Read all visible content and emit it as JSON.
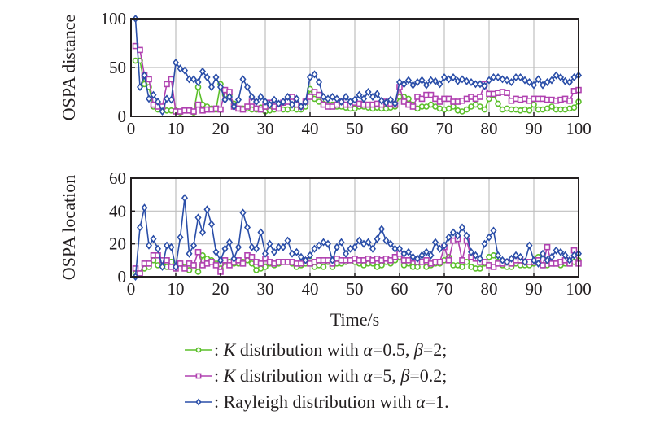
{
  "chart_data": [
    {
      "type": "line",
      "ylabel": "OSPA distance",
      "xlabel": "",
      "xlim": [
        0,
        100
      ],
      "ylim": [
        0,
        100
      ],
      "xticks": [
        "0",
        "10",
        "20",
        "30",
        "40",
        "50",
        "60",
        "70",
        "80",
        "90",
        "100"
      ],
      "yticks": [
        "0",
        "50",
        "100"
      ],
      "grid": true,
      "series": [
        {
          "name": "K-0.5-2",
          "color": "#5bbf2a",
          "marker": "circle",
          "x_start": 1,
          "values": [
            57,
            57,
            33,
            30,
            10,
            7,
            7,
            6,
            6,
            6,
            4,
            6,
            6,
            4,
            30,
            12,
            10,
            8,
            7,
            33,
            22,
            22,
            13,
            8,
            8,
            8,
            7,
            7,
            9,
            5,
            6,
            7,
            8,
            7,
            7,
            8,
            7,
            7,
            10,
            28,
            18,
            15,
            13,
            12,
            12,
            10,
            10,
            9,
            8,
            8,
            10,
            10,
            9,
            8,
            9,
            8,
            8,
            9,
            10,
            20,
            20,
            18,
            12,
            8,
            10,
            10,
            12,
            10,
            8,
            7,
            8,
            10,
            6,
            5,
            7,
            10,
            12,
            10,
            7,
            18,
            22,
            13,
            7,
            8,
            7,
            7,
            6,
            7,
            6,
            12,
            7,
            7,
            8,
            10,
            7,
            7,
            7,
            8,
            9,
            15
          ]
        },
        {
          "name": "K-5-0.2",
          "color": "#b041b0",
          "marker": "square",
          "x_start": 1,
          "values": [
            72,
            68,
            42,
            38,
            12,
            10,
            10,
            33,
            38,
            5,
            5,
            6,
            6,
            5,
            12,
            6,
            7,
            7,
            8,
            7,
            27,
            25,
            10,
            8,
            7,
            10,
            15,
            8,
            7,
            10,
            14,
            10,
            8,
            14,
            15,
            20,
            12,
            10,
            15,
            20,
            25,
            22,
            12,
            10,
            10,
            12,
            15,
            12,
            12,
            14,
            13,
            12,
            12,
            12,
            13,
            12,
            15,
            13,
            12,
            30,
            15,
            12,
            10,
            20,
            18,
            22,
            22,
            18,
            15,
            18,
            18,
            15,
            15,
            16,
            18,
            20,
            18,
            20,
            33,
            23,
            23,
            24,
            25,
            24,
            16,
            18,
            17,
            18,
            16,
            18,
            18,
            18,
            17,
            17,
            16,
            17,
            18,
            16,
            26,
            27
          ]
        },
        {
          "name": "Rayleigh-1",
          "color": "#2a4ea8",
          "marker": "diamond",
          "x_start": 1,
          "values": [
            100,
            30,
            42,
            18,
            22,
            15,
            5,
            18,
            17,
            55,
            49,
            47,
            38,
            38,
            35,
            46,
            40,
            30,
            40,
            30,
            17,
            20,
            10,
            17,
            38,
            30,
            20,
            15,
            20,
            15,
            12,
            17,
            13,
            15,
            20,
            12,
            18,
            10,
            15,
            40,
            43,
            35,
            20,
            18,
            20,
            18,
            15,
            20,
            15,
            17,
            22,
            18,
            25,
            20,
            23,
            16,
            14,
            17,
            13,
            35,
            33,
            37,
            32,
            35,
            37,
            32,
            37,
            36,
            33,
            40,
            38,
            40,
            36,
            38,
            36,
            35,
            33,
            33,
            31,
            37,
            40,
            40,
            38,
            37,
            35,
            40,
            40,
            37,
            35,
            32,
            38,
            32,
            35,
            37,
            42,
            40,
            36,
            35,
            40,
            42
          ]
        }
      ]
    },
    {
      "type": "line",
      "ylabel": "OSPA location",
      "xlabel": "Time/s",
      "xlim": [
        0,
        100
      ],
      "ylim": [
        0,
        60
      ],
      "xticks": [
        "0",
        "10",
        "20",
        "30",
        "40",
        "50",
        "60",
        "70",
        "80",
        "90",
        "100"
      ],
      "yticks": [
        "0",
        "20",
        "40",
        "60"
      ],
      "grid": true,
      "series": [
        {
          "name": "K-0.5-2",
          "color": "#5bbf2a",
          "marker": "circle",
          "x_start": 1,
          "values": [
            2,
            2,
            5,
            6,
            10,
            7,
            8,
            6,
            9,
            5,
            8,
            6,
            4,
            7,
            3,
            13,
            11,
            10,
            8,
            5,
            9,
            9,
            8,
            8,
            9,
            10,
            8,
            4,
            5,
            6,
            8,
            7,
            8,
            9,
            9,
            8,
            6,
            7,
            8,
            10,
            6,
            7,
            6,
            9,
            6,
            8,
            8,
            9,
            10,
            9,
            8,
            7,
            8,
            8,
            6,
            7,
            9,
            8,
            10,
            12,
            7,
            8,
            6,
            6,
            9,
            6,
            7,
            8,
            8,
            10,
            12,
            7,
            7,
            6,
            9,
            6,
            5,
            5,
            8,
            12,
            13,
            9,
            7,
            6,
            6,
            8,
            7,
            7,
            7,
            8,
            12,
            7,
            7,
            8,
            8,
            7,
            8,
            8,
            9,
            10
          ]
        },
        {
          "name": "K-5-0.2",
          "color": "#b041b0",
          "marker": "square",
          "x_start": 1,
          "values": [
            5,
            2,
            8,
            8,
            13,
            13,
            10,
            10,
            6,
            5,
            8,
            5,
            8,
            7,
            15,
            7,
            8,
            9,
            7,
            3,
            10,
            7,
            9,
            10,
            8,
            13,
            12,
            9,
            8,
            11,
            9,
            8,
            9,
            9,
            9,
            9,
            8,
            8,
            10,
            8,
            9,
            10,
            10,
            10,
            8,
            11,
            10,
            10,
            10,
            11,
            10,
            10,
            11,
            10,
            11,
            10,
            11,
            10,
            12,
            14,
            10,
            10,
            11,
            9,
            9,
            10,
            8,
            9,
            9,
            18,
            10,
            22,
            23,
            10,
            22,
            12,
            11,
            9,
            9,
            7,
            6,
            8,
            8,
            9,
            8,
            10,
            10,
            9,
            9,
            9,
            10,
            7,
            18,
            8,
            8,
            9,
            10,
            8,
            16,
            8
          ]
        },
        {
          "name": "Rayleigh-1",
          "color": "#2a4ea8",
          "marker": "diamond",
          "x_start": 1,
          "values": [
            0,
            30,
            42,
            19,
            23,
            17,
            6,
            19,
            18,
            6,
            24,
            48,
            14,
            19,
            36,
            27,
            41,
            32,
            15,
            10,
            17,
            21,
            11,
            18,
            39,
            30,
            18,
            17,
            27,
            14,
            20,
            15,
            18,
            18,
            22,
            14,
            15,
            12,
            10,
            13,
            17,
            19,
            21,
            20,
            10,
            18,
            21,
            14,
            17,
            18,
            22,
            20,
            21,
            17,
            23,
            29,
            22,
            20,
            17,
            17,
            14,
            15,
            12,
            11,
            13,
            15,
            13,
            21,
            17,
            19,
            24,
            27,
            25,
            30,
            25,
            15,
            13,
            11,
            20,
            24,
            28,
            13,
            10,
            9,
            11,
            13,
            12,
            9,
            19,
            10,
            8,
            14,
            10,
            12,
            16,
            15,
            13,
            10,
            13,
            14
          ]
        }
      ]
    }
  ],
  "legend": {
    "items": [
      {
        "prefix": ": ",
        "italic": "K",
        "text_a": " distribution with ",
        "greek1": "α",
        "text_b": "=0.5, ",
        "greek2": "β",
        "text_c": "=2;",
        "color": "#5bbf2a",
        "marker": "circle"
      },
      {
        "prefix": ": ",
        "italic": "K",
        "text_a": " distribution with ",
        "greek1": "α",
        "text_b": "=5, ",
        "greek2": "β",
        "text_c": "=0.2;",
        "color": "#b041b0",
        "marker": "square"
      },
      {
        "prefix": ": Rayleigh distribution with ",
        "italic": "",
        "text_a": "",
        "greek1": "α",
        "text_b": "=1.",
        "greek2": "",
        "text_c": "",
        "color": "#2a4ea8",
        "marker": "diamond"
      }
    ],
    "placement": "bottom-center"
  }
}
